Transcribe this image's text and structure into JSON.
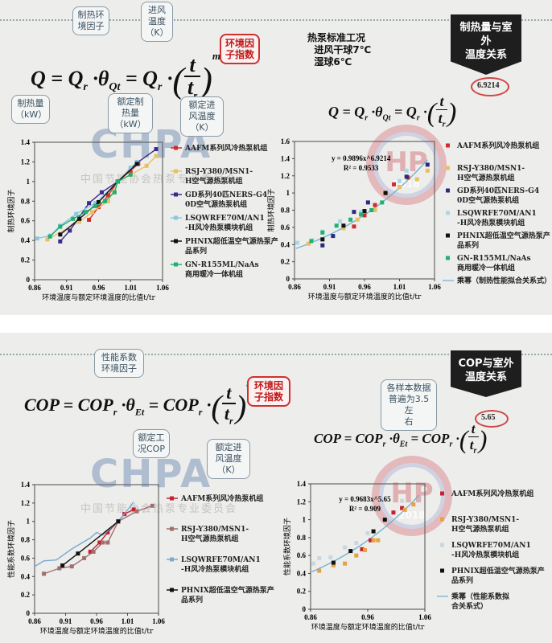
{
  "slide1": {
    "formula_left": "Q = Qᵣ · θ_Qt = Qᵣ · (t / tᵣ)^m",
    "formula_right": "Q = Qᵣ · θ_Qt = Qᵣ · (t / tᵣ)",
    "exponent": "6.9214",
    "callouts": {
      "theta": "制热环\n境因子",
      "t": "进风\n温度\n（K）",
      "m": "环境因\n子指数",
      "Q": "制热量\n（kW）",
      "Qr": "额定制\n热量\n（kW）",
      "tr": "额定进\n风温度\n（K）"
    },
    "condition_note": "热泵标准工况\n  进风干球7℃\n  湿球6℃",
    "banner": "制热量与室外\n温度关系"
  },
  "slide2": {
    "formula_left": "COP = COPᵣ · θ_Et = COPᵣ · (t / tᵣ)^m",
    "formula_right": "COP = COPᵣ · θ_Et = COPᵣ · (t / tᵣ)",
    "exponent": "5.65",
    "callouts": {
      "theta": "性能系数\n环境因子",
      "m": "环境因\n子指数",
      "COPr": "额定工\n况COP",
      "tr": "额定进\n风温度\n（K）",
      "sample": "各样本数据\n普遍为3.5左\n右"
    },
    "banner": "COP与室外\n温度关系"
  },
  "watermarks": {
    "logo": "CHPA",
    "logo_sub": "中国节能协会热泵专业委员会",
    "seal": "HP",
    "seal_year": "2018"
  },
  "chart_data": [
    {
      "type": "line",
      "xlabel": "环境温度与额定环境温度的比值t/tr",
      "ylabel": "制热环境因子",
      "xlim": [
        0.86,
        1.06
      ],
      "ylim": [
        0,
        1.4
      ],
      "xticks": [
        "0.86",
        "0.91",
        "0.96",
        "1.01",
        "1.06"
      ],
      "yticks": [
        "0",
        "0.2",
        "0.4",
        "0.6",
        "0.8",
        "1",
        "1.2",
        "1.4"
      ],
      "legend": "right",
      "grid": false,
      "series": [
        {
          "name": "AAFM系列风冷热泵机组",
          "color": "#d42a2a",
          "x": [
            0.945,
            0.96,
            0.975,
            0.99,
            1.01,
            1.022
          ],
          "y": [
            0.61,
            0.74,
            0.86,
            1.0,
            1.11,
            1.18
          ]
        },
        {
          "name": "RSJ-Y380/MSN1-H空气源热泵机组",
          "color": "#e8c060",
          "x": [
            0.88,
            0.93,
            0.95,
            0.975,
            0.99,
            1.01,
            1.035,
            1.05
          ],
          "y": [
            0.41,
            0.59,
            0.69,
            0.8,
            1.0,
            1.07,
            1.16,
            1.26
          ]
        },
        {
          "name": "GD系列40匹NERS-G40D空气源热泵机组",
          "color": "#3a2a8a",
          "x": [
            0.9,
            0.915,
            0.945,
            0.965,
            0.99,
            1.02,
            1.05
          ],
          "y": [
            0.39,
            0.5,
            0.78,
            0.89,
            1.0,
            1.19,
            1.33
          ]
        },
        {
          "name": "LSQWRFE70M/AN1-H风冷热泵模块机组",
          "color": "#8cc8e0",
          "x": [
            0.864,
            0.885,
            0.9,
            0.925,
            0.955,
            0.99,
            1.01,
            1.02
          ],
          "y": [
            0.42,
            0.45,
            0.55,
            0.67,
            0.78,
            1.0,
            1.14,
            1.2
          ]
        },
        {
          "name": "PHNIX超低温空气源热泵产品系列",
          "color": "#111111",
          "x": [
            0.9,
            0.93,
            0.96,
            0.99,
            1.02
          ],
          "y": [
            0.46,
            0.62,
            0.79,
            1.0,
            1.18
          ]
        },
        {
          "name": "GN-R155ML/NaAs商用暖冷一体机组",
          "color": "#20b070",
          "x": [
            0.884,
            0.9,
            0.92,
            0.94,
            0.955,
            0.97,
            0.985,
            0.99,
            1.01
          ],
          "y": [
            0.44,
            0.54,
            0.62,
            0.69,
            0.75,
            0.8,
            0.89,
            1.0,
            1.07
          ]
        }
      ]
    },
    {
      "type": "scatter",
      "xlabel": "环境温度与额定环境温度的比值t/tr",
      "ylabel": "制热环境因子",
      "xlim": [
        0.86,
        1.06
      ],
      "ylim": [
        0,
        1.6
      ],
      "xticks": [
        "0.86",
        "0.91",
        "0.96",
        "1.01",
        "1.06"
      ],
      "yticks": [
        "0",
        "0.2",
        "0.4",
        "0.6",
        "0.8",
        "1",
        "1.2",
        "1.4",
        "1.6"
      ],
      "legend": "right",
      "grid": false,
      "fit": {
        "name": "乘幂（制热性能拟合关系式）",
        "equation": "y = 0.9896x^6.9214",
        "r2": "R² = 0.9533",
        "a": 0.9896,
        "b": 6.9214,
        "color": "#6ab0d0"
      },
      "series": [
        {
          "name": "AAFM系列风冷热泵机组",
          "color": "#d42a2a",
          "x": [
            0.945,
            0.96,
            0.975,
            0.99,
            1.002,
            1.022
          ],
          "y": [
            0.61,
            0.74,
            0.86,
            1.0,
            1.1,
            1.18
          ]
        },
        {
          "name": "RSJ-Y380/MSN1-H空气源热泵机组",
          "color": "#e8c060",
          "x": [
            0.88,
            0.93,
            0.95,
            0.975,
            1.01,
            1.035,
            1.05
          ],
          "y": [
            0.41,
            0.59,
            0.69,
            0.8,
            1.07,
            1.16,
            1.26
          ]
        },
        {
          "name": "GD系列40匹NERS-G40D空气源热泵机组",
          "color": "#2a2a80",
          "x": [
            0.9,
            0.915,
            0.945,
            0.965,
            1.02,
            1.05
          ],
          "y": [
            0.39,
            0.5,
            0.78,
            0.89,
            1.19,
            1.33
          ]
        },
        {
          "name": "LSQWRFE70M/AN1-H风冷热泵模块机组",
          "color": "#a8d8e8",
          "x": [
            0.864,
            0.885,
            0.9,
            0.925,
            0.955,
            1.01,
            1.02
          ],
          "y": [
            0.42,
            0.45,
            0.55,
            0.67,
            0.78,
            1.14,
            1.26
          ]
        },
        {
          "name": "PHNIX超低温空气源热泵产品系列",
          "color": "#111111",
          "x": [
            0.9,
            0.93,
            0.96,
            0.99
          ],
          "y": [
            0.46,
            0.62,
            0.79,
            1.0
          ]
        },
        {
          "name": "GN-R155ML/NaAs商用暖冷一体机组",
          "color": "#20b070",
          "x": [
            0.884,
            0.9,
            0.92,
            0.94,
            0.955,
            0.97,
            0.985
          ],
          "y": [
            0.44,
            0.54,
            0.62,
            0.69,
            0.75,
            0.8,
            0.89
          ]
        }
      ]
    },
    {
      "type": "line",
      "xlabel": "环境温度与额定环境温度的比值t/tr",
      "ylabel": "性能系数环境因子",
      "xlim": [
        0.86,
        1.06
      ],
      "ylim": [
        0,
        1.4
      ],
      "xticks": [
        "0.86",
        "0.91",
        "0.96",
        "1.01",
        "1.06"
      ],
      "yticks": [
        "0",
        "0.2",
        "0.4",
        "0.6",
        "0.8",
        "1",
        "1.2",
        "1.4"
      ],
      "legend": "right",
      "grid": false,
      "series": [
        {
          "name": "AAFM系列风冷热泵机组",
          "color": "#c82030",
          "x": [
            0.95,
            0.965,
            0.978,
            0.995,
            1.005,
            1.02
          ],
          "y": [
            0.67,
            0.77,
            0.88,
            1.0,
            1.08,
            1.13
          ]
        },
        {
          "name": "RSJ-Y380/MSN1-H空气源热泵机组",
          "color": "#a07070",
          "x": [
            0.875,
            0.9,
            0.92,
            0.94,
            0.955,
            0.97,
            0.978,
            0.995,
            1.025,
            1.05
          ],
          "y": [
            0.43,
            0.49,
            0.51,
            0.6,
            0.67,
            0.77,
            0.77,
            1.0,
            1.11,
            1.17
          ]
        },
        {
          "name": "LSQWRFE70M/AN1-H风冷热泵模块机组",
          "color": "#7aaad0",
          "x": [
            0.86,
            0.875,
            0.895,
            0.92,
            0.95,
            0.96,
            0.97,
            0.995,
            1.02
          ],
          "y": [
            0.51,
            0.57,
            0.58,
            0.7,
            0.82,
            0.88,
            0.85,
            1.0,
            1.21
          ]
        },
        {
          "name": "PHNIX超低温空气源热泵产品系列",
          "color": "#111111",
          "x": [
            0.905,
            0.93,
            0.995
          ],
          "y": [
            0.52,
            0.65,
            1.0
          ]
        }
      ]
    },
    {
      "type": "scatter",
      "xlabel": "环境温度与额定环境温度的比值t/tr",
      "ylabel": "性能系数环境因子",
      "xlim": [
        0.86,
        1.06
      ],
      "ylim": [
        0,
        1.4
      ],
      "xticks": [
        "0.86",
        "0.96",
        "1.06"
      ],
      "yticks": [
        "0",
        "0.2",
        "0.4",
        "0.6",
        "0.8",
        "1",
        "1.2",
        "1.4"
      ],
      "legend": "right",
      "grid": false,
      "fit": {
        "name": "乘幂（性能系数拟合关系式）",
        "equation": "y = 0.9683x^5.65",
        "r2": "R² = 0.909",
        "a": 0.9683,
        "b": 5.65,
        "color": "#6ab0d0"
      },
      "series": [
        {
          "name": "AAFM系列风冷热泵机组",
          "color": "#c82030",
          "x": [
            0.95,
            0.965,
            1.005,
            1.02
          ],
          "y": [
            0.67,
            0.77,
            1.08,
            1.13
          ]
        },
        {
          "name": "RSJ-Y380/MSN1-H空气源热泵机组",
          "color": "#e8a040",
          "x": [
            0.875,
            0.9,
            0.92,
            0.94,
            0.955,
            0.97,
            0.978,
            1.025,
            1.04
          ],
          "y": [
            0.43,
            0.49,
            0.51,
            0.6,
            0.66,
            0.77,
            0.77,
            1.11,
            1.17
          ]
        },
        {
          "name": "LSQWRFE70M/AN1-H风冷热泵模块机组",
          "color": "#c8d8e0",
          "x": [
            0.865,
            0.875,
            0.895,
            0.92,
            0.94,
            0.96,
            1.02
          ],
          "y": [
            0.51,
            0.57,
            0.58,
            0.69,
            0.74,
            0.85,
            1.21
          ]
        },
        {
          "name": "PHNIX超低温空气源热泵产品系列",
          "color": "#111111",
          "x": [
            0.9,
            0.93,
            0.97,
            0.99
          ],
          "y": [
            0.52,
            0.65,
            0.87,
            1.0
          ]
        }
      ]
    }
  ]
}
